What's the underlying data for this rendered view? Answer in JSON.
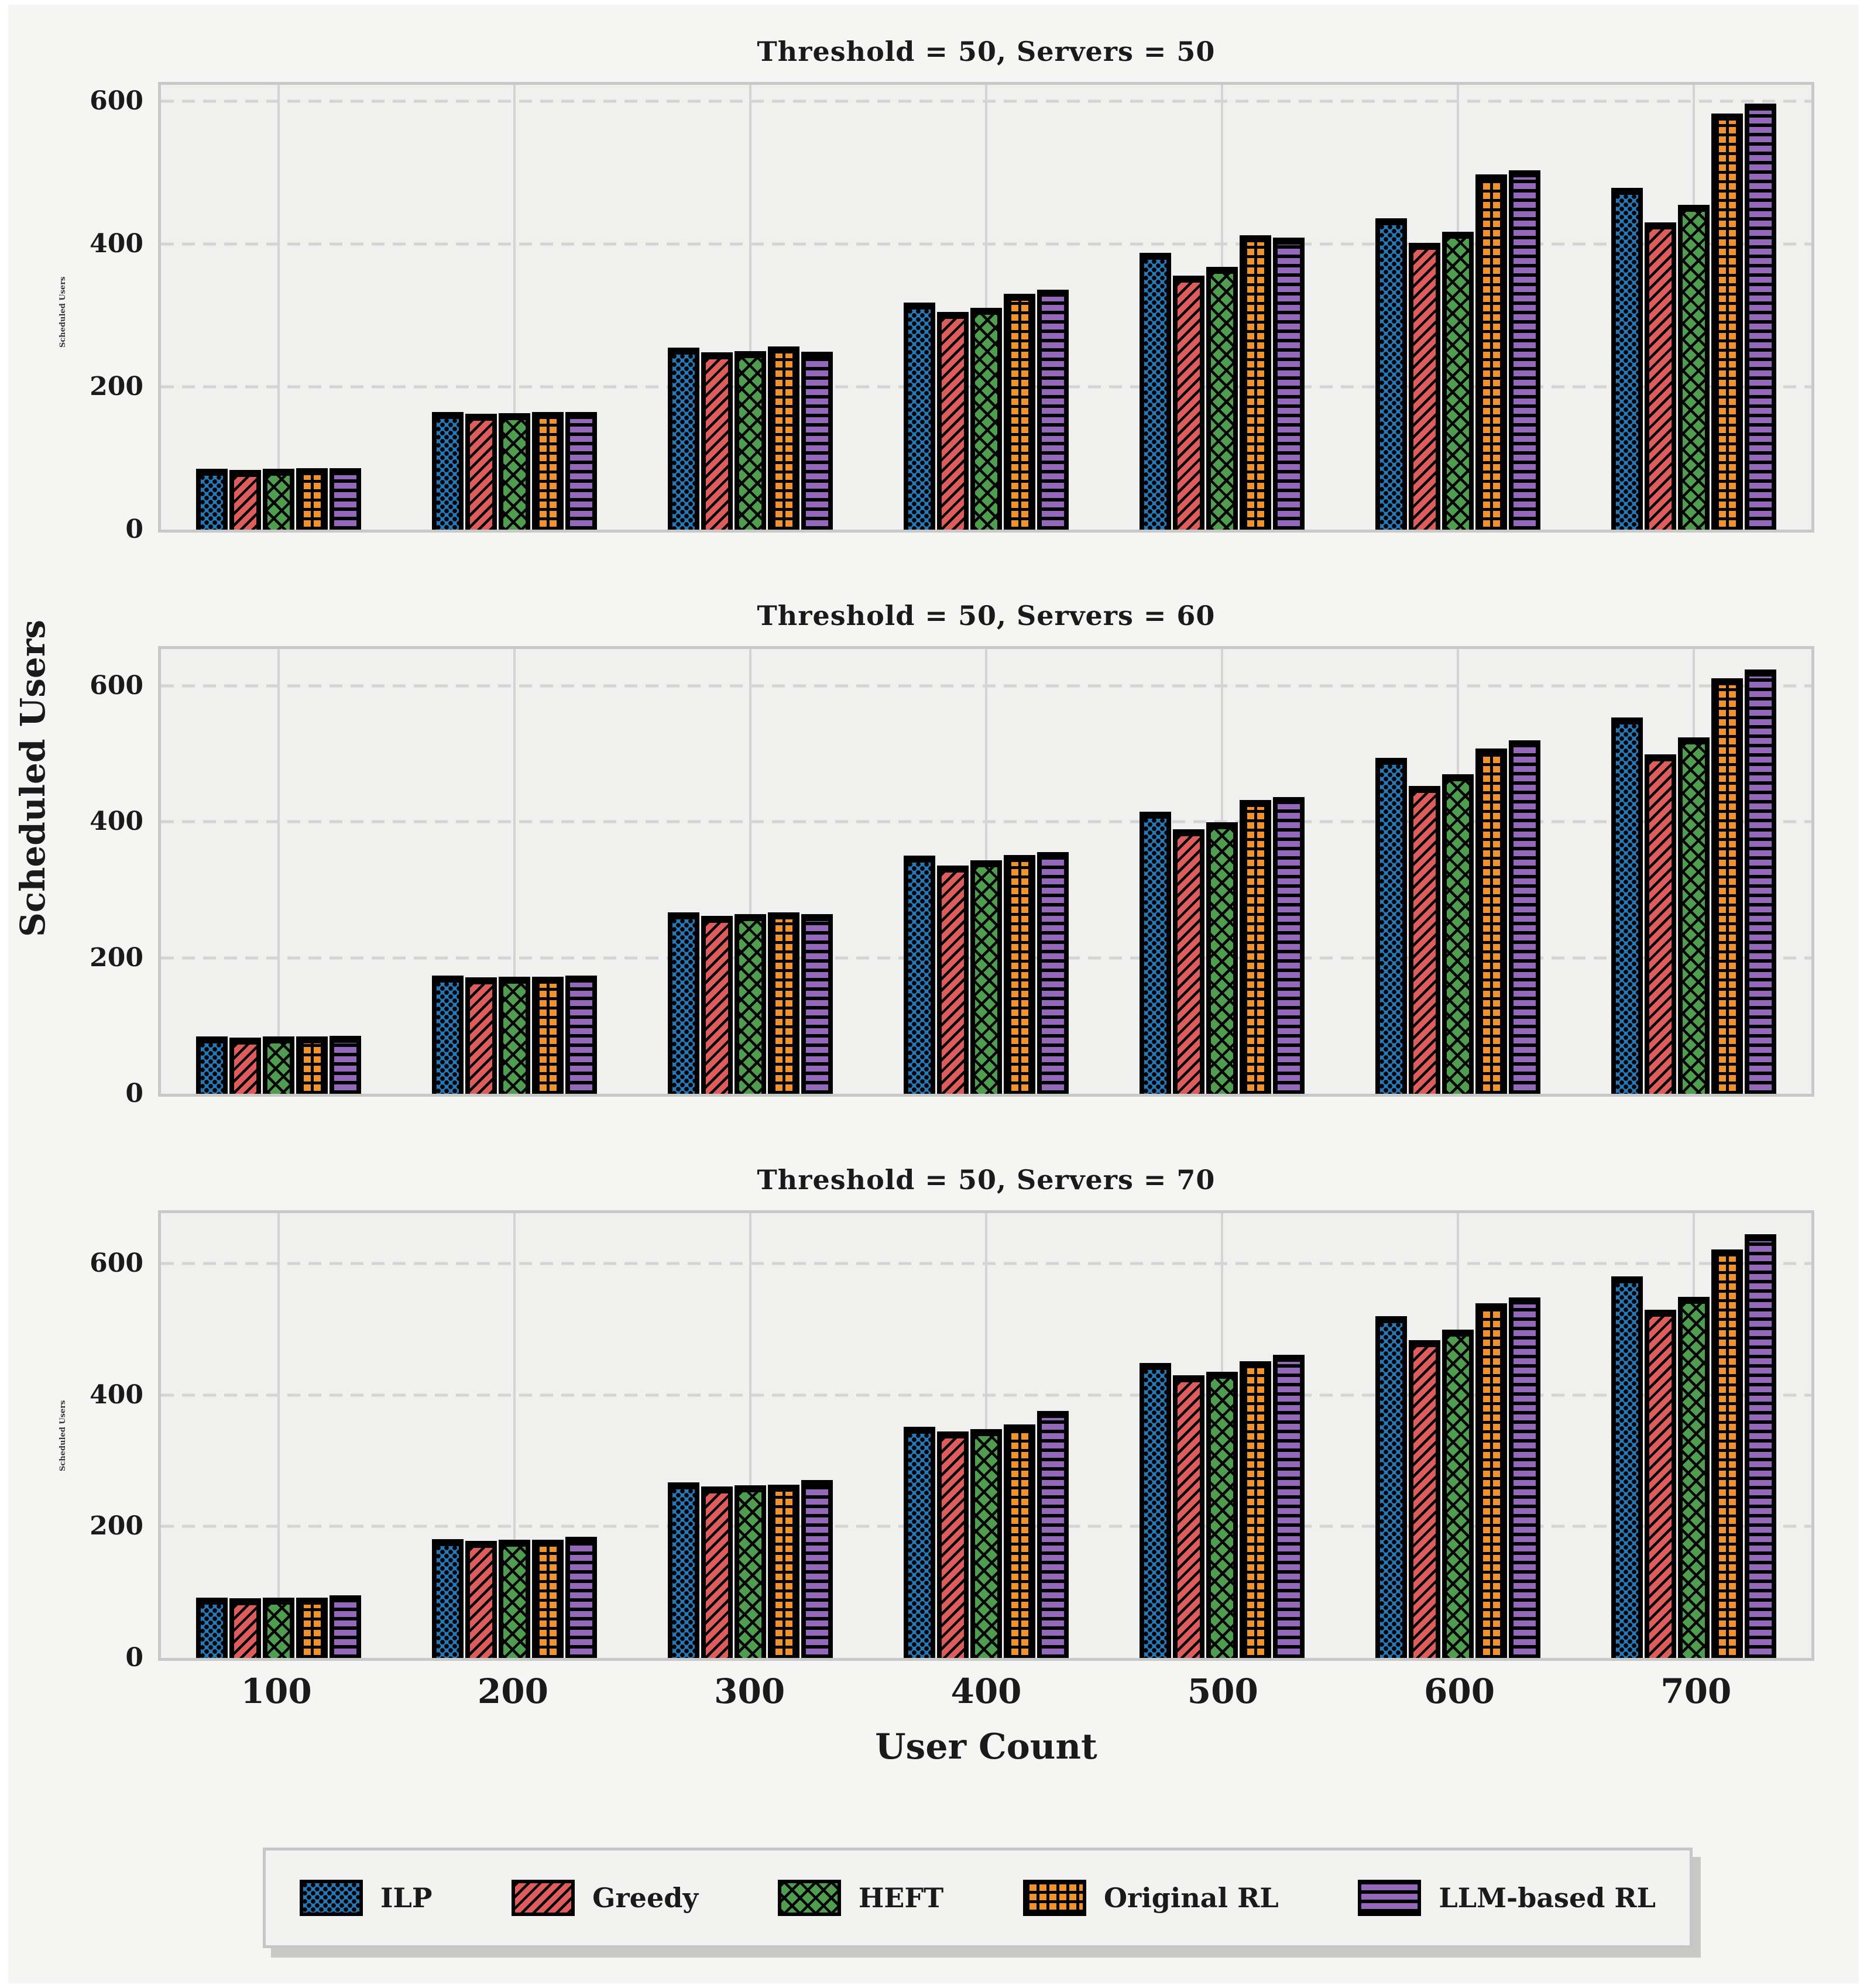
{
  "figure": {
    "background": "#f5f5f3",
    "axes_background": "#f0f0ee",
    "grid_color": "#d4d4d4",
    "spine_color": "#c8c8c8",
    "xlabel": "User Count",
    "ylabel": "Scheduled Users"
  },
  "legend": {
    "position": "bottom-center",
    "items": [
      {
        "label": "ILP",
        "color": "#2878b5",
        "hatch": "dots"
      },
      {
        "label": "Greedy",
        "color": "#dd5c5c",
        "hatch": "diagonal"
      },
      {
        "label": "HEFT",
        "color": "#4f9e50",
        "hatch": "crosshatch"
      },
      {
        "label": "Original RL",
        "color": "#f0932f",
        "hatch": "grid"
      },
      {
        "label": "LLM-based RL",
        "color": "#9468bd",
        "hatch": "horizontal"
      }
    ]
  },
  "chart_data": [
    {
      "type": "bar",
      "title": "Threshold = 50, Servers = 50",
      "categories": [
        "100",
        "200",
        "300",
        "400",
        "500",
        "600",
        "700"
      ],
      "yticks": [
        0,
        200,
        400,
        600
      ],
      "ymax": 623,
      "grid": {
        "horizontal": "dashed",
        "vertical": "solid-at-ticks"
      },
      "series": [
        {
          "name": "ILP",
          "color": "#2878b5",
          "hatch": "dots",
          "values": [
            85,
            165,
            255,
            318,
            388,
            436,
            479
          ]
        },
        {
          "name": "Greedy",
          "color": "#dd5c5c",
          "hatch": "diagonal",
          "values": [
            84,
            162,
            248,
            305,
            356,
            402,
            430
          ]
        },
        {
          "name": "HEFT",
          "color": "#4f9e50",
          "hatch": "crosshatch",
          "values": [
            85,
            163,
            250,
            311,
            368,
            417,
            455
          ]
        },
        {
          "name": "Original RL",
          "color": "#f0932f",
          "hatch": "grid",
          "values": [
            86,
            165,
            257,
            330,
            412,
            498,
            583
          ]
        },
        {
          "name": "LLM-based RL",
          "color": "#9468bd",
          "hatch": "horizontal",
          "values": [
            86,
            165,
            249,
            336,
            409,
            503,
            597
          ]
        }
      ]
    },
    {
      "type": "bar",
      "title": "Threshold = 50, Servers = 60",
      "categories": [
        "100",
        "200",
        "300",
        "400",
        "500",
        "600",
        "700"
      ],
      "yticks": [
        0,
        200,
        400,
        600
      ],
      "ymax": 654,
      "grid": {
        "horizontal": "dashed",
        "vertical": "solid-at-ticks"
      },
      "series": [
        {
          "name": "ILP",
          "color": "#2878b5",
          "hatch": "dots",
          "values": [
            84,
            174,
            267,
            350,
            415,
            494,
            553
          ]
        },
        {
          "name": "Greedy",
          "color": "#dd5c5c",
          "hatch": "diagonal",
          "values": [
            83,
            171,
            262,
            336,
            389,
            453,
            499
          ]
        },
        {
          "name": "HEFT",
          "color": "#4f9e50",
          "hatch": "crosshatch",
          "values": [
            84,
            172,
            264,
            343,
            399,
            470,
            524
          ]
        },
        {
          "name": "Original RL",
          "color": "#f0932f",
          "hatch": "grid",
          "values": [
            84,
            172,
            267,
            351,
            432,
            508,
            611
          ]
        },
        {
          "name": "LLM-based RL",
          "color": "#9468bd",
          "hatch": "horizontal",
          "values": [
            85,
            174,
            264,
            355,
            436,
            520,
            624
          ]
        }
      ]
    },
    {
      "type": "bar",
      "title": "Threshold = 50, Servers = 70",
      "categories": [
        "100",
        "200",
        "300",
        "400",
        "500",
        "600",
        "700"
      ],
      "yticks": [
        0,
        200,
        400,
        600
      ],
      "ymax": 677,
      "grid": {
        "horizontal": "dashed",
        "vertical": "solid-at-ticks"
      },
      "series": [
        {
          "name": "ILP",
          "color": "#2878b5",
          "hatch": "dots",
          "values": [
            92,
            181,
            267,
            352,
            449,
            520,
            581
          ]
        },
        {
          "name": "Greedy",
          "color": "#dd5c5c",
          "hatch": "diagonal",
          "values": [
            91,
            178,
            261,
            345,
            430,
            484,
            530
          ]
        },
        {
          "name": "HEFT",
          "color": "#4f9e50",
          "hatch": "crosshatch",
          "values": [
            92,
            180,
            263,
            348,
            436,
            500,
            550
          ]
        },
        {
          "name": "Original RL",
          "color": "#f0932f",
          "hatch": "grid",
          "values": [
            92,
            180,
            264,
            355,
            452,
            540,
            622
          ]
        },
        {
          "name": "LLM-based RL",
          "color": "#9468bd",
          "hatch": "horizontal",
          "values": [
            95,
            184,
            271,
            376,
            461,
            549,
            645
          ]
        }
      ]
    }
  ]
}
